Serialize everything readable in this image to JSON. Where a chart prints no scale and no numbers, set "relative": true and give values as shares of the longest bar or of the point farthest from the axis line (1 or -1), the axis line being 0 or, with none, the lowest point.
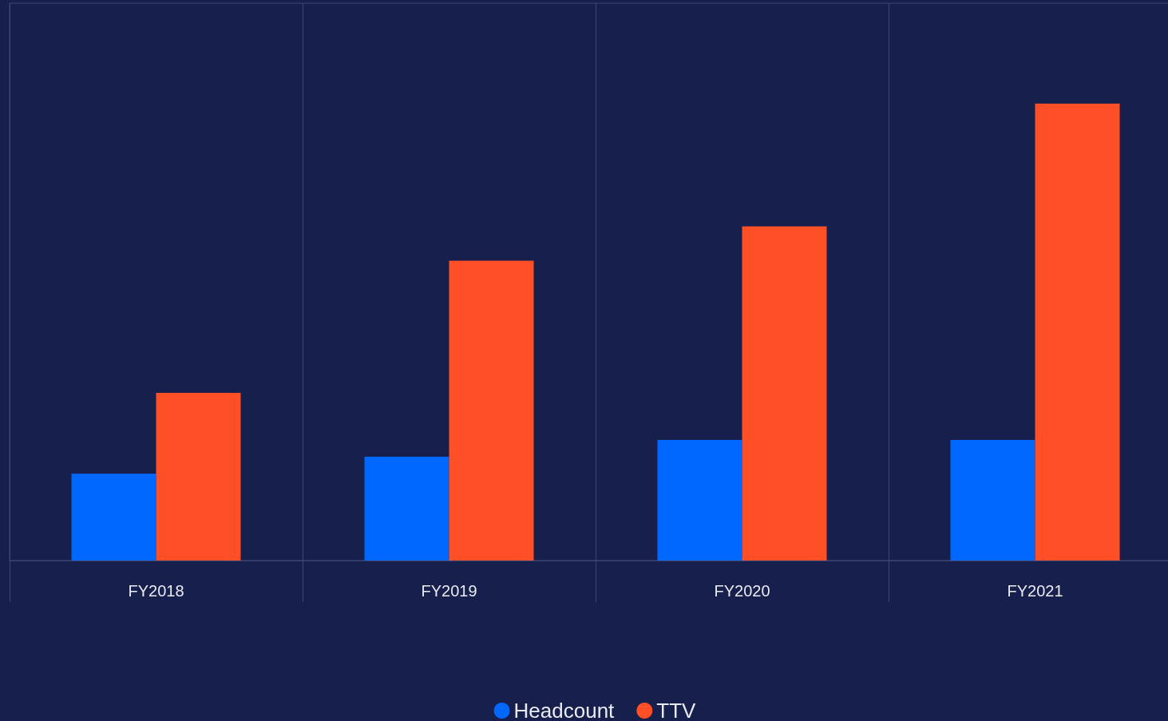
{
  "chart_data": {
    "type": "bar",
    "categories": [
      "FY2018",
      "FY2019",
      "FY2020",
      "FY2021"
    ],
    "relative": true,
    "series": [
      {
        "name": "Headcount",
        "color": "#0068ff",
        "values": [
          0.19,
          0.227,
          0.264,
          0.264
        ]
      },
      {
        "name": "TTV",
        "color": "#ff4f26",
        "values": [
          0.367,
          0.656,
          0.731,
          1
        ]
      }
    ],
    "grid": "x",
    "legend": "bottom"
  }
}
